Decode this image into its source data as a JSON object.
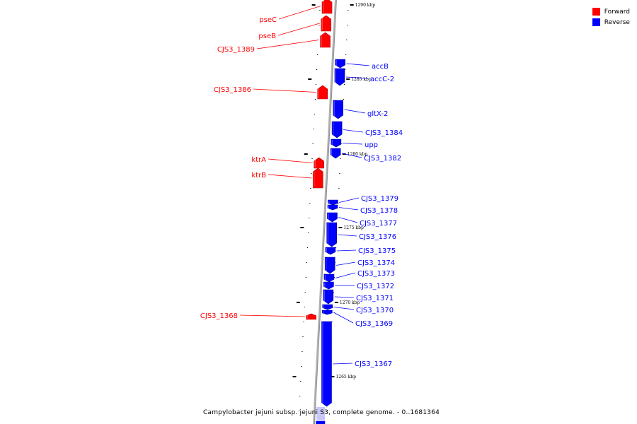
{
  "legend": [
    {
      "label": "Forward",
      "color": "#ff0000"
    },
    {
      "label": "Reverse",
      "color": "#0000ff"
    }
  ],
  "caption": "Campylobacter jejuni subsp. jejuni S3, complete genome. - 0..1681364",
  "colors": {
    "forward": "#ff0000",
    "reverse": "#0000ff",
    "backbone": "#b0b0b0"
  },
  "ruler": [
    {
      "label": "1290 kbp"
    },
    {
      "label": "1285 kbp"
    },
    {
      "label": "1280 kbp"
    },
    {
      "label": "1275 kbp"
    },
    {
      "label": "1270 kbp"
    },
    {
      "label": "1265 kbp"
    }
  ],
  "genes": [
    {
      "name": "pseC",
      "strand": "forward"
    },
    {
      "name": "pseB",
      "strand": "forward"
    },
    {
      "name": "CJS3_1389",
      "strand": "forward"
    },
    {
      "name": "accB",
      "strand": "reverse"
    },
    {
      "name": "accC-2",
      "strand": "reverse"
    },
    {
      "name": "CJS3_1386",
      "strand": "forward"
    },
    {
      "name": "gltX-2",
      "strand": "reverse"
    },
    {
      "name": "CJS3_1384",
      "strand": "reverse"
    },
    {
      "name": "upp",
      "strand": "reverse"
    },
    {
      "name": "CJS3_1382",
      "strand": "reverse"
    },
    {
      "name": "ktrA",
      "strand": "forward"
    },
    {
      "name": "ktrB",
      "strand": "forward"
    },
    {
      "name": "CJS3_1379",
      "strand": "reverse"
    },
    {
      "name": "CJS3_1378",
      "strand": "reverse"
    },
    {
      "name": "CJS3_1377",
      "strand": "reverse"
    },
    {
      "name": "CJS3_1376",
      "strand": "reverse"
    },
    {
      "name": "CJS3_1375",
      "strand": "reverse"
    },
    {
      "name": "CJS3_1374",
      "strand": "reverse"
    },
    {
      "name": "CJS3_1373",
      "strand": "reverse"
    },
    {
      "name": "CJS3_1372",
      "strand": "reverse"
    },
    {
      "name": "CJS3_1371",
      "strand": "reverse"
    },
    {
      "name": "CJS3_1370",
      "strand": "reverse"
    },
    {
      "name": "CJS3_1369",
      "strand": "reverse"
    },
    {
      "name": "CJS3_1368",
      "strand": "forward"
    },
    {
      "name": "CJS3_1367",
      "strand": "reverse"
    }
  ]
}
